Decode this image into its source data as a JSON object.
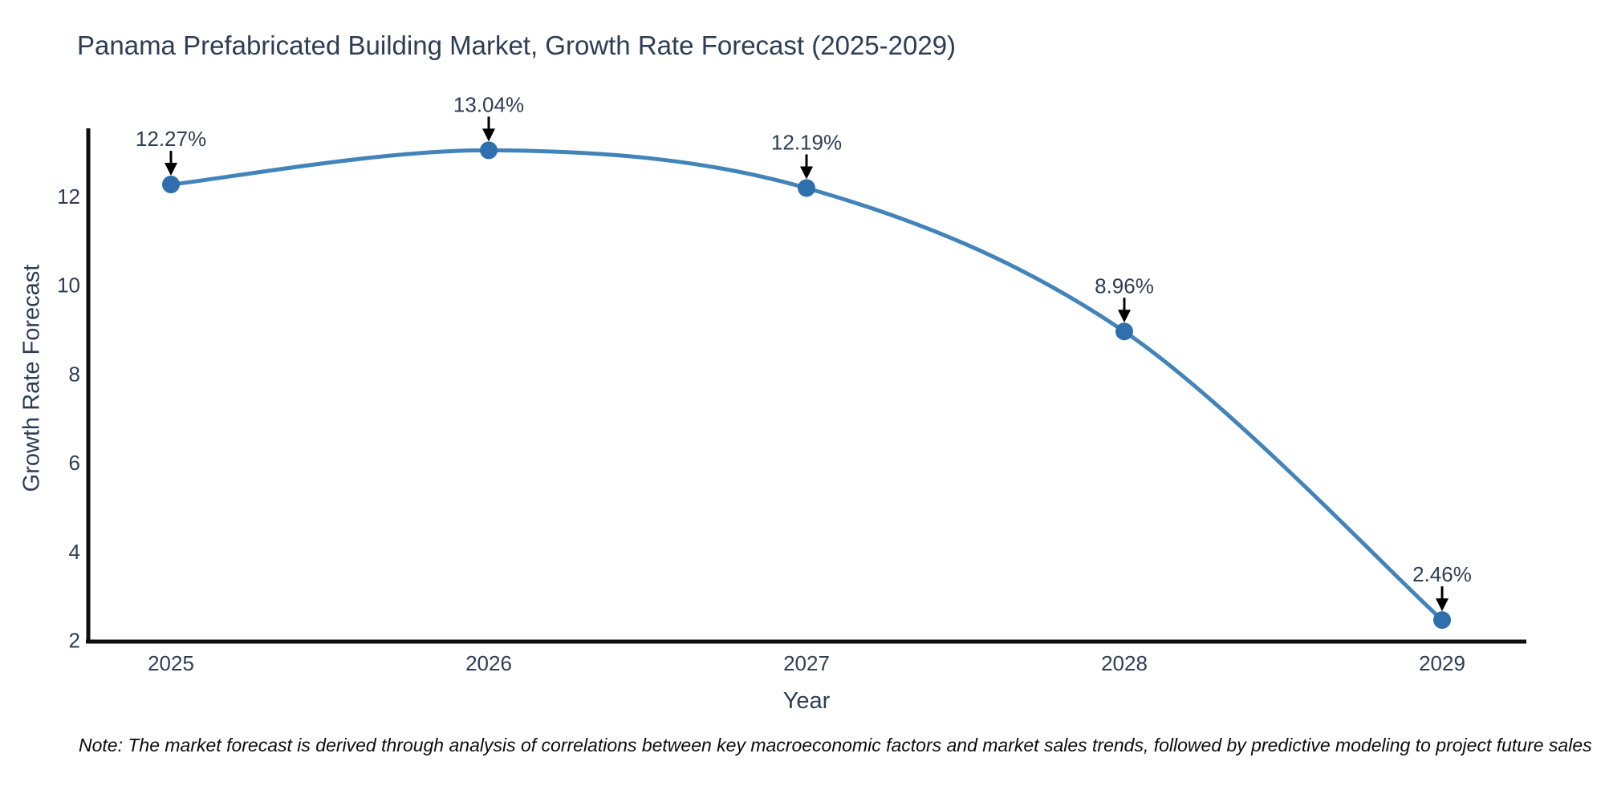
{
  "title": "Panama Prefabricated Building Market, Growth Rate Forecast (2025-2029)",
  "note": "Note: The market forecast is derived through analysis of correlations between key macroeconomic factors and market sales trends, followed by predictive modeling to project future sales",
  "chart_data": {
    "type": "line",
    "title": "Panama Prefabricated Building Market, Growth Rate Forecast (2025-2029)",
    "xlabel": "Year",
    "ylabel": "Growth Rate Forecast",
    "categories": [
      "2025",
      "2026",
      "2027",
      "2028",
      "2029"
    ],
    "values": [
      12.27,
      13.04,
      12.19,
      8.96,
      2.46
    ],
    "point_labels": [
      "12.27%",
      "13.04%",
      "12.19%",
      "8.96%",
      "2.46%"
    ],
    "yticks": [
      2,
      4,
      6,
      8,
      10,
      12
    ],
    "ylim": [
      1.9,
      13.55
    ],
    "grid": false,
    "legend_position": "none",
    "line_shape": "spline",
    "colors": {
      "line": "#4284ba",
      "marker": "#2f6fae",
      "annotation_text": "#2e3d54",
      "annotation_arrow": "#000000",
      "tick_text": "#2e3d54",
      "axis_spine": "#0d0d0d",
      "background": "#ffffff"
    }
  }
}
